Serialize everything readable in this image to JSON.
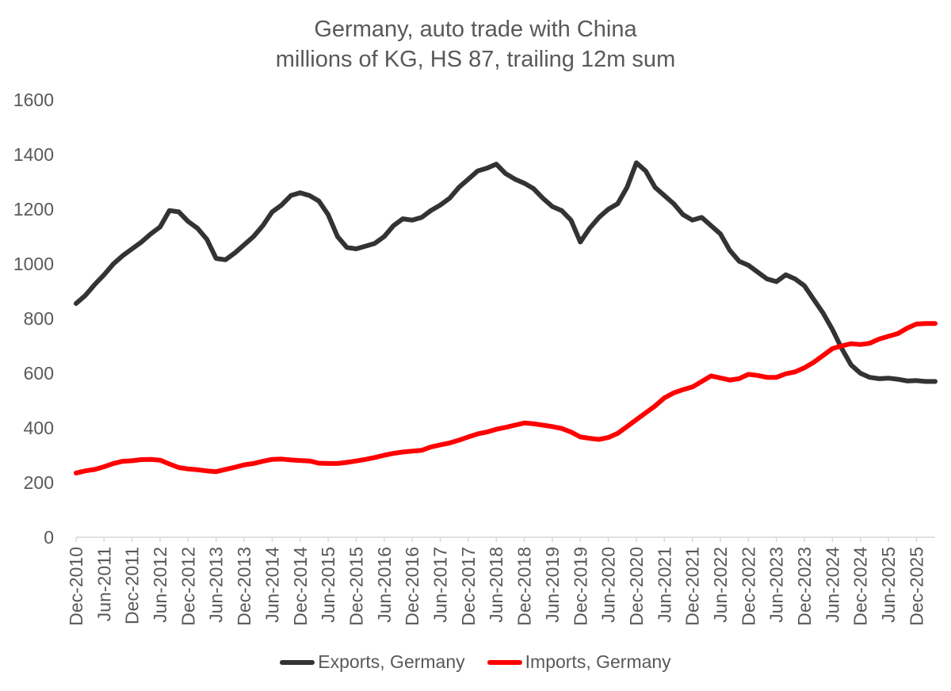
{
  "title_line1": "Germany, auto trade with China",
  "title_line2": "millions of KG, HS 87, trailing 12m sum",
  "chart_data": {
    "type": "line",
    "title": "Germany, auto trade with China",
    "subtitle": "millions of KG, HS 87, trailing 12m sum",
    "ylim": [
      0,
      1600
    ],
    "yticks": [
      0,
      200,
      400,
      600,
      800,
      1000,
      1200,
      1400,
      1600
    ],
    "grid": false,
    "legend_position": "bottom",
    "x_start": "Dec-2010",
    "x_end": "Apr-2026",
    "xtick_labels": [
      "Dec-2010",
      "Jun-2011",
      "Dec-2011",
      "Jun-2012",
      "Dec-2012",
      "Jun-2013",
      "Dec-2013",
      "Jun-2014",
      "Dec-2014",
      "Jun-2015",
      "Dec-2015",
      "Jun-2016",
      "Dec-2016",
      "Jun-2017",
      "Dec-2017",
      "Jun-2018",
      "Dec-2018",
      "Jun-2019",
      "Dec-2019",
      "Jun-2020",
      "Dec-2020",
      "Jun-2021",
      "Dec-2021",
      "Jun-2022",
      "Dec-2022",
      "Jun-2023",
      "Dec-2023",
      "Jun-2024",
      "Dec-2024",
      "Jun-2025",
      "Dec-2025"
    ],
    "series": [
      {
        "name": "Exports, Germany",
        "color": "#333333",
        "points": [
          [
            "Dec-2010",
            855
          ],
          [
            "Feb-2011",
            885
          ],
          [
            "Apr-2011",
            925
          ],
          [
            "Jun-2011",
            960
          ],
          [
            "Aug-2011",
            1000
          ],
          [
            "Oct-2011",
            1030
          ],
          [
            "Dec-2011",
            1055
          ],
          [
            "Feb-2012",
            1080
          ],
          [
            "Apr-2012",
            1110
          ],
          [
            "Jun-2012",
            1135
          ],
          [
            "Aug-2012",
            1195
          ],
          [
            "Oct-2012",
            1190
          ],
          [
            "Dec-2012",
            1155
          ],
          [
            "Feb-2013",
            1130
          ],
          [
            "Apr-2013",
            1090
          ],
          [
            "Jun-2013",
            1020
          ],
          [
            "Aug-2013",
            1015
          ],
          [
            "Oct-2013",
            1040
          ],
          [
            "Dec-2013",
            1070
          ],
          [
            "Feb-2014",
            1100
          ],
          [
            "Apr-2014",
            1140
          ],
          [
            "Jun-2014",
            1190
          ],
          [
            "Aug-2014",
            1215
          ],
          [
            "Oct-2014",
            1250
          ],
          [
            "Dec-2014",
            1260
          ],
          [
            "Feb-2015",
            1250
          ],
          [
            "Apr-2015",
            1230
          ],
          [
            "Jun-2015",
            1180
          ],
          [
            "Aug-2015",
            1100
          ],
          [
            "Oct-2015",
            1060
          ],
          [
            "Dec-2015",
            1055
          ],
          [
            "Feb-2016",
            1065
          ],
          [
            "Apr-2016",
            1075
          ],
          [
            "Jun-2016",
            1100
          ],
          [
            "Aug-2016",
            1140
          ],
          [
            "Oct-2016",
            1165
          ],
          [
            "Dec-2016",
            1160
          ],
          [
            "Feb-2017",
            1170
          ],
          [
            "Apr-2017",
            1195
          ],
          [
            "Jun-2017",
            1215
          ],
          [
            "Aug-2017",
            1240
          ],
          [
            "Oct-2017",
            1280
          ],
          [
            "Dec-2017",
            1310
          ],
          [
            "Feb-2018",
            1340
          ],
          [
            "Apr-2018",
            1350
          ],
          [
            "Jun-2018",
            1365
          ],
          [
            "Aug-2018",
            1330
          ],
          [
            "Oct-2018",
            1310
          ],
          [
            "Dec-2018",
            1295
          ],
          [
            "Feb-2019",
            1275
          ],
          [
            "Apr-2019",
            1240
          ],
          [
            "Jun-2019",
            1210
          ],
          [
            "Aug-2019",
            1195
          ],
          [
            "Oct-2019",
            1160
          ],
          [
            "Dec-2019",
            1080
          ],
          [
            "Feb-2020",
            1130
          ],
          [
            "Apr-2020",
            1170
          ],
          [
            "Jun-2020",
            1200
          ],
          [
            "Aug-2020",
            1220
          ],
          [
            "Oct-2020",
            1280
          ],
          [
            "Dec-2020",
            1370
          ],
          [
            "Feb-2021",
            1340
          ],
          [
            "Apr-2021",
            1280
          ],
          [
            "Jun-2021",
            1250
          ],
          [
            "Aug-2021",
            1220
          ],
          [
            "Oct-2021",
            1180
          ],
          [
            "Dec-2021",
            1160
          ],
          [
            "Feb-2022",
            1170
          ],
          [
            "Apr-2022",
            1140
          ],
          [
            "Jun-2022",
            1110
          ],
          [
            "Aug-2022",
            1050
          ],
          [
            "Oct-2022",
            1010
          ],
          [
            "Dec-2022",
            995
          ],
          [
            "Feb-2023",
            970
          ],
          [
            "Apr-2023",
            945
          ],
          [
            "Jun-2023",
            935
          ],
          [
            "Aug-2023",
            960
          ],
          [
            "Oct-2023",
            945
          ],
          [
            "Dec-2023",
            920
          ],
          [
            "Feb-2024",
            870
          ],
          [
            "Apr-2024",
            820
          ],
          [
            "Jun-2024",
            760
          ],
          [
            "Aug-2024",
            690
          ],
          [
            "Oct-2024",
            630
          ],
          [
            "Dec-2024",
            600
          ],
          [
            "Feb-2025",
            585
          ],
          [
            "Apr-2025",
            580
          ],
          [
            "Jun-2025",
            582
          ],
          [
            "Aug-2025",
            578
          ],
          [
            "Oct-2025",
            572
          ],
          [
            "Dec-2025",
            573
          ],
          [
            "Feb-2026",
            570
          ],
          [
            "Apr-2026",
            570
          ]
        ]
      },
      {
        "name": "Imports, Germany",
        "color": "#ff0000",
        "points": [
          [
            "Dec-2010",
            235
          ],
          [
            "Feb-2011",
            243
          ],
          [
            "Apr-2011",
            248
          ],
          [
            "Jun-2011",
            258
          ],
          [
            "Aug-2011",
            270
          ],
          [
            "Oct-2011",
            278
          ],
          [
            "Dec-2011",
            280
          ],
          [
            "Feb-2012",
            284
          ],
          [
            "Apr-2012",
            285
          ],
          [
            "Jun-2012",
            282
          ],
          [
            "Aug-2012",
            268
          ],
          [
            "Oct-2012",
            255
          ],
          [
            "Dec-2012",
            250
          ],
          [
            "Feb-2013",
            247
          ],
          [
            "Apr-2013",
            243
          ],
          [
            "Jun-2013",
            240
          ],
          [
            "Aug-2013",
            248
          ],
          [
            "Oct-2013",
            256
          ],
          [
            "Dec-2013",
            265
          ],
          [
            "Feb-2014",
            270
          ],
          [
            "Apr-2014",
            278
          ],
          [
            "Jun-2014",
            285
          ],
          [
            "Aug-2014",
            286
          ],
          [
            "Oct-2014",
            283
          ],
          [
            "Dec-2014",
            281
          ],
          [
            "Feb-2015",
            279
          ],
          [
            "Apr-2015",
            271
          ],
          [
            "Jun-2015",
            270
          ],
          [
            "Aug-2015",
            270
          ],
          [
            "Oct-2015",
            274
          ],
          [
            "Dec-2015",
            279
          ],
          [
            "Feb-2016",
            285
          ],
          [
            "Apr-2016",
            292
          ],
          [
            "Jun-2016",
            300
          ],
          [
            "Aug-2016",
            307
          ],
          [
            "Oct-2016",
            312
          ],
          [
            "Dec-2016",
            315
          ],
          [
            "Feb-2017",
            318
          ],
          [
            "Apr-2017",
            330
          ],
          [
            "Jun-2017",
            338
          ],
          [
            "Aug-2017",
            345
          ],
          [
            "Oct-2017",
            355
          ],
          [
            "Dec-2017",
            367
          ],
          [
            "Feb-2018",
            378
          ],
          [
            "Apr-2018",
            385
          ],
          [
            "Jun-2018",
            395
          ],
          [
            "Aug-2018",
            402
          ],
          [
            "Oct-2018",
            410
          ],
          [
            "Dec-2018",
            418
          ],
          [
            "Feb-2019",
            415
          ],
          [
            "Apr-2019",
            410
          ],
          [
            "Jun-2019",
            405
          ],
          [
            "Aug-2019",
            398
          ],
          [
            "Oct-2019",
            385
          ],
          [
            "Dec-2019",
            367
          ],
          [
            "Feb-2020",
            362
          ],
          [
            "Apr-2020",
            358
          ],
          [
            "Jun-2020",
            365
          ],
          [
            "Aug-2020",
            380
          ],
          [
            "Oct-2020",
            405
          ],
          [
            "Dec-2020",
            430
          ],
          [
            "Feb-2021",
            455
          ],
          [
            "Apr-2021",
            480
          ],
          [
            "Jun-2021",
            510
          ],
          [
            "Aug-2021",
            528
          ],
          [
            "Oct-2021",
            540
          ],
          [
            "Dec-2021",
            550
          ],
          [
            "Feb-2022",
            570
          ],
          [
            "Apr-2022",
            590
          ],
          [
            "Jun-2022",
            583
          ],
          [
            "Aug-2022",
            575
          ],
          [
            "Oct-2022",
            580
          ],
          [
            "Dec-2022",
            596
          ],
          [
            "Feb-2023",
            592
          ],
          [
            "Apr-2023",
            585
          ],
          [
            "Jun-2023",
            585
          ],
          [
            "Aug-2023",
            598
          ],
          [
            "Oct-2023",
            605
          ],
          [
            "Dec-2023",
            620
          ],
          [
            "Feb-2024",
            640
          ],
          [
            "Apr-2024",
            665
          ],
          [
            "Jun-2024",
            690
          ],
          [
            "Aug-2024",
            700
          ],
          [
            "Oct-2024",
            708
          ],
          [
            "Dec-2024",
            705
          ],
          [
            "Feb-2025",
            710
          ],
          [
            "Apr-2025",
            725
          ],
          [
            "Jun-2025",
            735
          ],
          [
            "Aug-2025",
            745
          ],
          [
            "Oct-2025",
            765
          ],
          [
            "Dec-2025",
            780
          ],
          [
            "Feb-2026",
            782
          ],
          [
            "Apr-2026",
            782
          ]
        ]
      }
    ]
  }
}
